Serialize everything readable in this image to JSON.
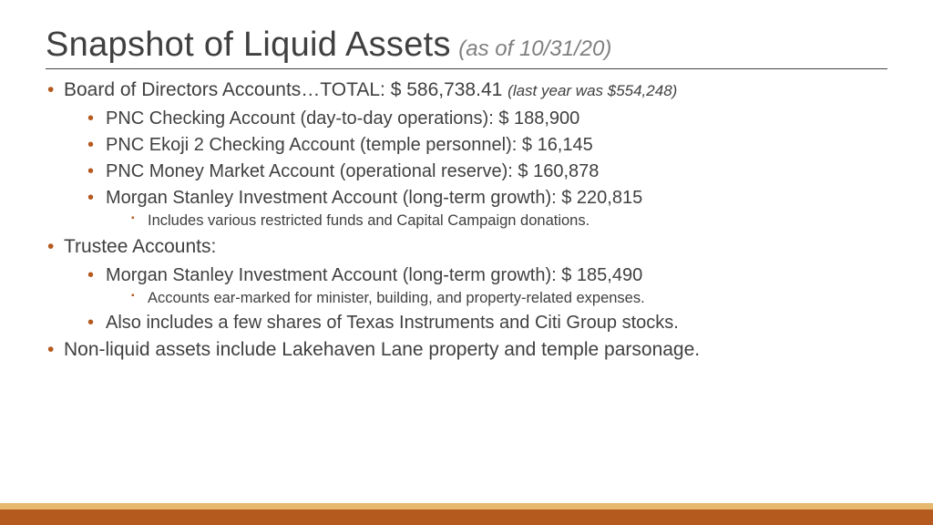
{
  "title": {
    "main": "Snapshot of Liquid Assets",
    "sub": "(as of 10/31/20)"
  },
  "colors": {
    "bullet": "#b55a1f",
    "text": "#404040",
    "subtitle": "#7f7f7f",
    "footer_top": "#e6b76e",
    "footer_bot": "#b55a1f",
    "title_underline": "#444444"
  },
  "items": [
    {
      "text": "Board of Directors Accounts…TOTAL: $ 586,738.41 ",
      "note": "(last year was $554,248)",
      "children": [
        {
          "text": "PNC Checking Account (day-to-day operations): $ 188,900"
        },
        {
          "text": "PNC Ekoji 2 Checking Account (temple personnel): $ 16,145"
        },
        {
          "text": "PNC Money Market Account (operational reserve): $ 160,878"
        },
        {
          "text": "Morgan Stanley Investment Account (long-term growth): $ 220,815",
          "children": [
            {
              "text": "Includes various restricted funds and Capital Campaign donations."
            }
          ]
        }
      ]
    },
    {
      "text": "Trustee Accounts:",
      "children": [
        {
          "text": "Morgan Stanley Investment Account (long-term growth): $ 185,490",
          "children": [
            {
              "text": "Accounts ear-marked for minister, building, and property-related expenses."
            }
          ]
        },
        {
          "text": "Also includes a few shares of Texas Instruments and Citi Group stocks."
        }
      ]
    },
    {
      "text": "Non-liquid assets include Lakehaven Lane property and temple parsonage."
    }
  ]
}
